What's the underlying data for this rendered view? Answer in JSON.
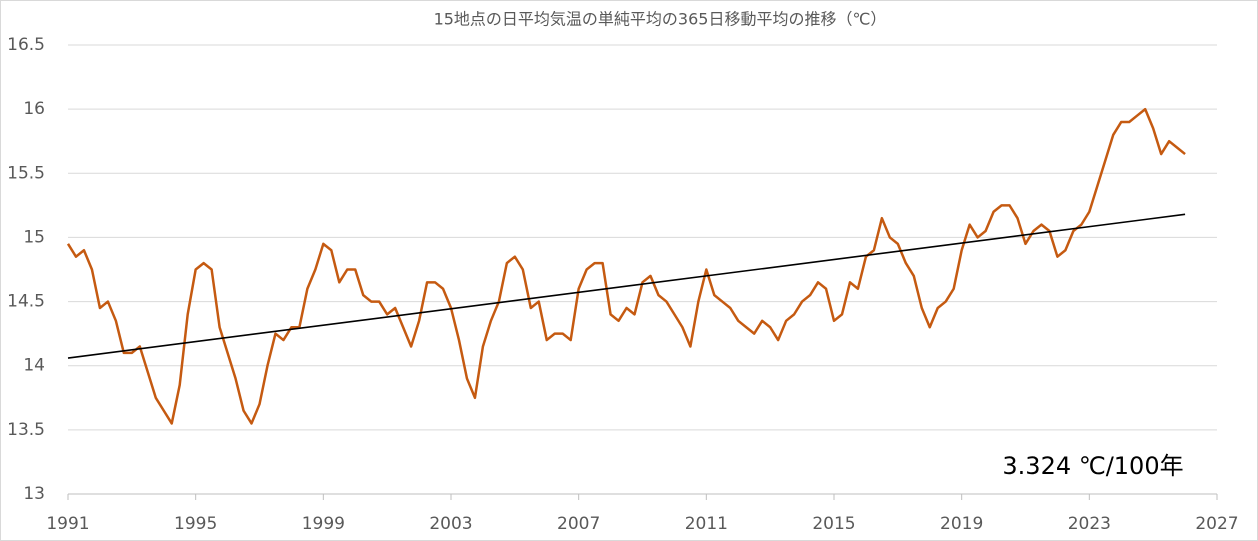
{
  "chart_data": {
    "type": "line",
    "title": "15地点の日平均気温の単純平均の365日移動平均の推移（℃）",
    "annotation": "3.324 ℃/100年",
    "xlim": [
      1991,
      2027
    ],
    "xticks": [
      1991,
      1995,
      1999,
      2003,
      2007,
      2011,
      2015,
      2019,
      2023,
      2027
    ],
    "ylim": [
      13,
      16.5
    ],
    "yticks": [
      13,
      13.5,
      14,
      14.5,
      15,
      15.5,
      16,
      16.5
    ],
    "grid": true,
    "series": [
      {
        "color": "#c55a11",
        "x": [
          1991.0,
          1991.25,
          1991.5,
          1991.75,
          1992.0,
          1992.25,
          1992.5,
          1992.75,
          1993.0,
          1993.25,
          1993.5,
          1993.75,
          1994.0,
          1994.25,
          1994.5,
          1994.75,
          1995.0,
          1995.25,
          1995.5,
          1995.75,
          1996.0,
          1996.25,
          1996.5,
          1996.75,
          1997.0,
          1997.25,
          1997.5,
          1997.75,
          1998.0,
          1998.25,
          1998.5,
          1998.75,
          1999.0,
          1999.25,
          1999.5,
          1999.75,
          2000.0,
          2000.25,
          2000.5,
          2000.75,
          2001.0,
          2001.25,
          2001.5,
          2001.75,
          2002.0,
          2002.25,
          2002.5,
          2002.75,
          2003.0,
          2003.25,
          2003.5,
          2003.75,
          2004.0,
          2004.25,
          2004.5,
          2004.75,
          2005.0,
          2005.25,
          2005.5,
          2005.75,
          2006.0,
          2006.25,
          2006.5,
          2006.75,
          2007.0,
          2007.25,
          2007.5,
          2007.75,
          2008.0,
          2008.25,
          2008.5,
          2008.75,
          2009.0,
          2009.25,
          2009.5,
          2009.75,
          2010.0,
          2010.25,
          2010.5,
          2010.75,
          2011.0,
          2011.25,
          2011.5,
          2011.75,
          2012.0,
          2012.25,
          2012.5,
          2012.75,
          2013.0,
          2013.25,
          2013.5,
          2013.75,
          2014.0,
          2014.25,
          2014.5,
          2014.75,
          2015.0,
          2015.25,
          2015.5,
          2015.75,
          2016.0,
          2016.25,
          2016.5,
          2016.75,
          2017.0,
          2017.25,
          2017.5,
          2017.75,
          2018.0,
          2018.25,
          2018.5,
          2018.75,
          2019.0,
          2019.25,
          2019.5,
          2019.75,
          2020.0,
          2020.25,
          2020.5,
          2020.75,
          2021.0,
          2021.25,
          2021.5,
          2021.75,
          2022.0,
          2022.25,
          2022.5,
          2022.75,
          2023.0,
          2023.25,
          2023.5,
          2023.75,
          2024.0,
          2024.25,
          2024.5,
          2024.75,
          2025.0,
          2025.25,
          2025.5,
          2025.75,
          2026.0
        ],
        "values": [
          14.95,
          14.85,
          14.9,
          14.75,
          14.45,
          14.5,
          14.35,
          14.1,
          14.1,
          14.15,
          13.95,
          13.75,
          13.65,
          13.55,
          13.85,
          14.4,
          14.75,
          14.8,
          14.75,
          14.3,
          14.1,
          13.9,
          13.65,
          13.55,
          13.7,
          14.0,
          14.25,
          14.2,
          14.3,
          14.3,
          14.6,
          14.75,
          14.95,
          14.9,
          14.65,
          14.75,
          14.75,
          14.55,
          14.5,
          14.5,
          14.4,
          14.45,
          14.3,
          14.15,
          14.35,
          14.65,
          14.65,
          14.6,
          14.45,
          14.2,
          13.9,
          13.75,
          14.15,
          14.35,
          14.5,
          14.8,
          14.85,
          14.75,
          14.45,
          14.5,
          14.2,
          14.25,
          14.25,
          14.2,
          14.6,
          14.75,
          14.8,
          14.8,
          14.4,
          14.35,
          14.45,
          14.4,
          14.65,
          14.7,
          14.55,
          14.5,
          14.4,
          14.3,
          14.15,
          14.5,
          14.75,
          14.55,
          14.5,
          14.45,
          14.35,
          14.3,
          14.25,
          14.35,
          14.3,
          14.2,
          14.35,
          14.4,
          14.5,
          14.55,
          14.65,
          14.6,
          14.35,
          14.4,
          14.65,
          14.6,
          14.85,
          14.9,
          15.15,
          15.0,
          14.95,
          14.8,
          14.7,
          14.45,
          14.3,
          14.45,
          14.5,
          14.6,
          14.9,
          15.1,
          15.0,
          15.05,
          15.2,
          15.25,
          15.25,
          15.15,
          14.95,
          15.05,
          15.1,
          15.05,
          14.85,
          14.9,
          15.05,
          15.1,
          15.2,
          15.4,
          15.6,
          15.8,
          15.9,
          15.9,
          15.95,
          16.0,
          15.85,
          15.65,
          15.75,
          15.7,
          15.65
        ]
      },
      {
        "color": "#000000",
        "x": [
          1991,
          2026
        ],
        "values": [
          14.06,
          15.18
        ]
      }
    ]
  }
}
